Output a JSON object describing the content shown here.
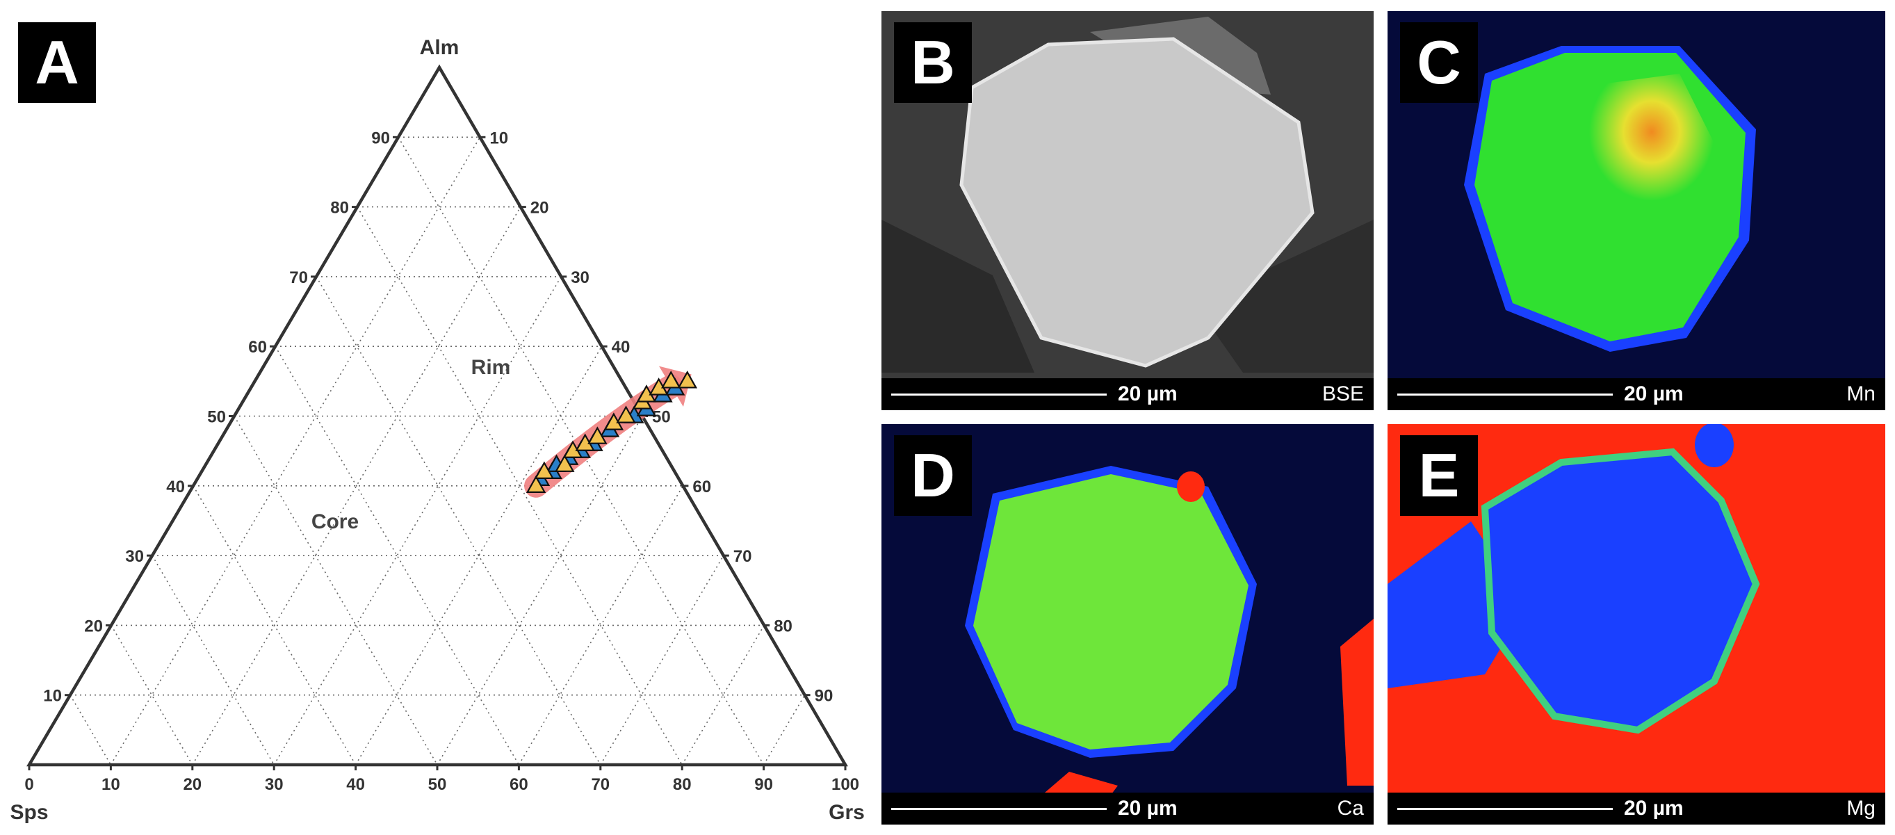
{
  "ternary": {
    "panel_label": "A",
    "apex_labels": {
      "top": "Alm",
      "left": "Sps",
      "right": "Grs"
    },
    "left_edge_ticks": [
      "10",
      "20",
      "30",
      "40",
      "50",
      "60",
      "70",
      "80",
      "90"
    ],
    "right_edge_ticks": [
      "10",
      "20",
      "30",
      "40",
      "50",
      "60",
      "70",
      "80",
      "90"
    ],
    "bottom_edge_ticks": [
      "0",
      "10",
      "20",
      "30",
      "40",
      "50",
      "60",
      "70",
      "80",
      "90",
      "100"
    ],
    "annotations": {
      "core": "Core",
      "rim": "Rim"
    },
    "colors": {
      "edge": "#333333",
      "grid": "#666666",
      "arrow": "#f08080",
      "marker_blue": "#2a7fc8",
      "marker_yellow": "#f2c14e",
      "marker_stroke": "#111111"
    }
  },
  "chart_data": {
    "type": "scatter",
    "title": "",
    "axes": {
      "top": "Alm",
      "left": "Sps",
      "right": "Grs"
    },
    "range": [
      0,
      100
    ],
    "grid": true,
    "series": [
      {
        "marker": "triangle",
        "color": "#2a7fc8",
        "points": [
          {
            "alm": 41,
            "grs": 42
          },
          {
            "alm": 42,
            "grs": 43
          },
          {
            "alm": 43,
            "grs": 43
          },
          {
            "alm": 44,
            "grs": 44
          },
          {
            "alm": 45,
            "grs": 45
          },
          {
            "alm": 46,
            "grs": 46
          },
          {
            "alm": 48,
            "grs": 47
          },
          {
            "alm": 50,
            "grs": 49
          },
          {
            "alm": 51,
            "grs": 50
          },
          {
            "alm": 53,
            "grs": 51
          },
          {
            "alm": 54,
            "grs": 52
          },
          {
            "alm": 55,
            "grs": 53
          }
        ]
      },
      {
        "marker": "triangle",
        "color": "#f2c14e",
        "points": [
          {
            "alm": 40,
            "grs": 42
          },
          {
            "alm": 42,
            "grs": 42
          },
          {
            "alm": 43,
            "grs": 44
          },
          {
            "alm": 45,
            "grs": 44
          },
          {
            "alm": 46,
            "grs": 45
          },
          {
            "alm": 47,
            "grs": 46
          },
          {
            "alm": 49,
            "grs": 47
          },
          {
            "alm": 50,
            "grs": 48
          },
          {
            "alm": 52,
            "grs": 49
          },
          {
            "alm": 53,
            "grs": 49
          },
          {
            "alm": 54,
            "grs": 50
          },
          {
            "alm": 55,
            "grs": 51
          },
          {
            "alm": 55,
            "grs": 53
          }
        ]
      }
    ],
    "trend_arrow": {
      "from": {
        "alm": 40,
        "grs": 42
      },
      "to": {
        "alm": 56,
        "grs": 53
      }
    }
  },
  "micrographs": [
    {
      "letter": "B",
      "scale": "20 µm",
      "element": "BSE",
      "map": "bse"
    },
    {
      "letter": "C",
      "scale": "20 µm",
      "element": "Mn",
      "map": "mn"
    },
    {
      "letter": "D",
      "scale": "20 µm",
      "element": "Ca",
      "map": "ca"
    },
    {
      "letter": "E",
      "scale": "20 µm",
      "element": "Mg",
      "map": "mg"
    }
  ]
}
